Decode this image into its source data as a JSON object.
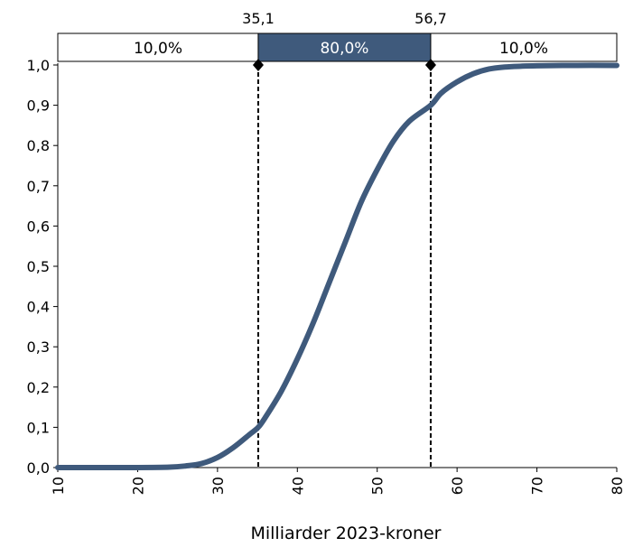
{
  "chart_data": {
    "type": "line",
    "xlabel": "Milliarder 2023-kroner",
    "ylabel": "",
    "xlim": [
      10,
      80
    ],
    "ylim": [
      0,
      1
    ],
    "xticks": [
      10,
      20,
      30,
      40,
      50,
      60,
      70,
      80
    ],
    "xtick_labels": [
      "10",
      "20",
      "30",
      "40",
      "50",
      "60",
      "70",
      "80"
    ],
    "yticks": [
      0,
      0.1,
      0.2,
      0.3,
      0.4,
      0.5,
      0.6,
      0.7,
      0.8,
      0.9,
      1.0
    ],
    "ytick_labels": [
      "0,0",
      "0,1",
      "0,2",
      "0,3",
      "0,4",
      "0,5",
      "0,6",
      "0,7",
      "0,8",
      "0,9",
      "1,0"
    ],
    "grid": false,
    "series": [
      {
        "color": "#3f5a7c",
        "x": [
          10,
          15,
          20,
          24,
          26,
          28,
          30,
          32,
          34,
          35.1,
          36,
          38,
          40,
          42,
          44,
          46,
          48,
          50,
          52,
          54,
          56.7,
          58,
          60,
          62,
          64,
          66,
          68,
          70,
          75,
          80
        ],
        "y": [
          0.0,
          0.0,
          0.0,
          0.001,
          0.004,
          0.01,
          0.025,
          0.05,
          0.082,
          0.1,
          0.125,
          0.19,
          0.27,
          0.36,
          0.46,
          0.56,
          0.66,
          0.74,
          0.81,
          0.86,
          0.9,
          0.93,
          0.958,
          0.978,
          0.99,
          0.995,
          0.997,
          0.998,
          0.999,
          0.999
        ]
      }
    ],
    "markers": [
      {
        "x": 35.1,
        "label": "35,1"
      },
      {
        "x": 56.7,
        "label": "56,7"
      }
    ],
    "bands": [
      {
        "label": "10,0%",
        "from": 10,
        "to": 35.1,
        "fill": "#ffffff",
        "text_color": "#000000"
      },
      {
        "label": "80,0%",
        "from": 35.1,
        "to": 56.7,
        "fill": "#3f5a7c",
        "text_color": "#ffffff"
      },
      {
        "label": "10,0%",
        "from": 56.7,
        "to": 80,
        "fill": "#ffffff",
        "text_color": "#000000"
      }
    ]
  }
}
